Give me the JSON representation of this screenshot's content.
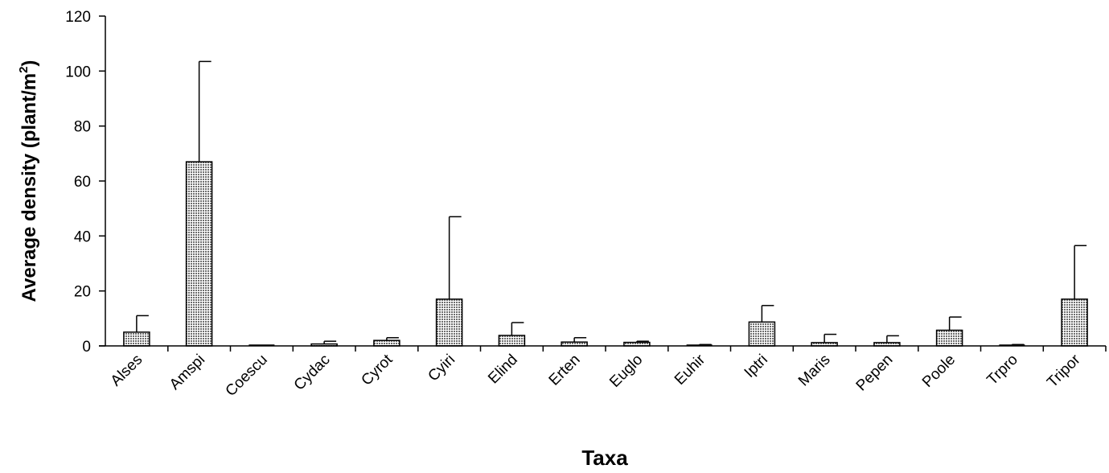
{
  "chart_data": {
    "type": "bar",
    "title": "",
    "xlabel": "Taxa",
    "ylabel": "Average density (plant/m",
    "ylabel_superscript": "2",
    "ylabel_suffix": ")",
    "ylim": [
      0,
      120
    ],
    "yticks": [
      0,
      20,
      40,
      60,
      80,
      100,
      120
    ],
    "grid": false,
    "legend": "none",
    "bar_color": "#8c8c8c",
    "categories": [
      "Alses",
      "Amspi",
      "Coescu",
      "Cydac",
      "Cyrot",
      "Cyiri",
      "Elind",
      "Erten",
      "Euglo",
      "Euhir",
      "Iptri",
      "Maris",
      "Pepen",
      "Poole",
      "Trpro",
      "Tripor"
    ],
    "values": [
      5,
      67,
      0,
      0.7,
      2,
      17,
      3.8,
      1.4,
      1.3,
      0.1,
      8.7,
      1.2,
      1.2,
      5.7,
      0.1,
      17
    ],
    "errors": [
      6,
      36.5,
      0,
      1,
      1,
      30,
      4.7,
      1.6,
      0.4,
      0.4,
      6,
      3,
      2.5,
      4.8,
      0.4,
      19.5
    ]
  }
}
